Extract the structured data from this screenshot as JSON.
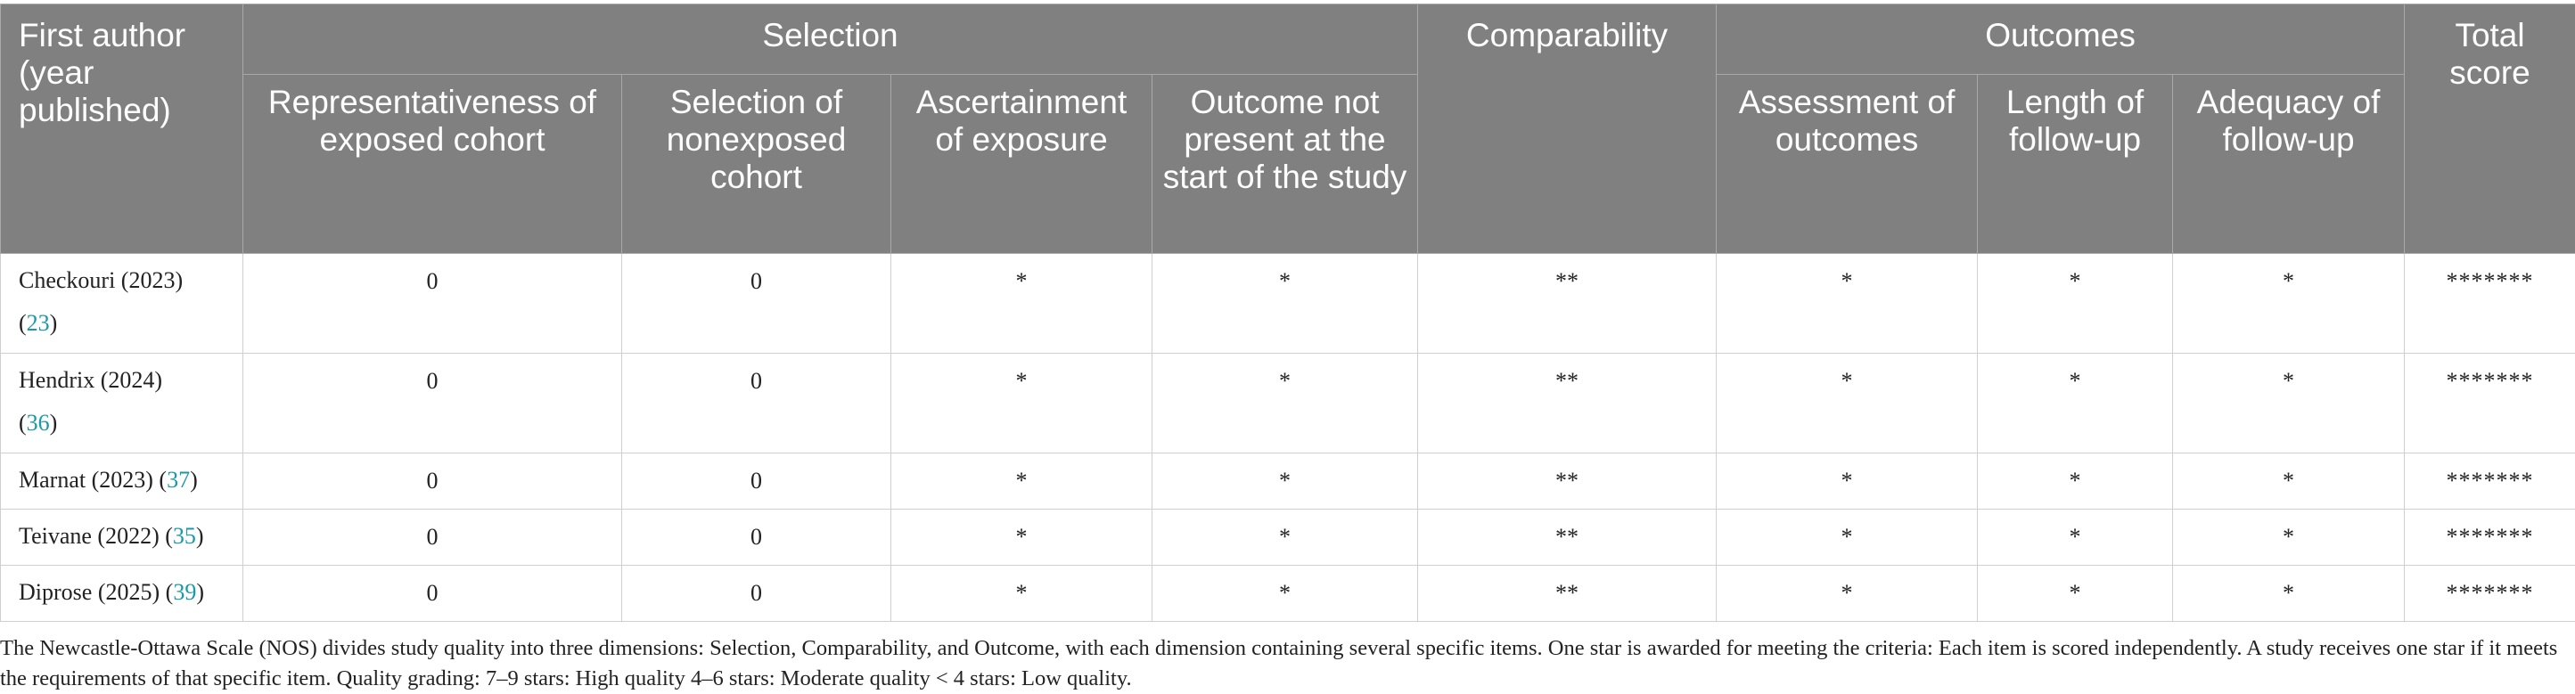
{
  "header": {
    "first_author": "First author (year published)",
    "groups": {
      "selection": "Selection",
      "comparability": "Comparability",
      "outcomes": "Outcomes",
      "total": "Total score"
    },
    "selection_items": [
      "Representativeness of exposed cohort",
      "Selection of nonexposed cohort",
      "Ascertainment of exposure",
      "Outcome not present at the start of the study"
    ],
    "outcome_items": [
      "Assessment of outcomes",
      "Length of follow-up",
      "Adequacy of follow-up"
    ]
  },
  "rows": [
    {
      "author": "Checkouri (2023)",
      "ref": "23",
      "cells": [
        "0",
        "0",
        "*",
        "*",
        "**",
        "*",
        "*",
        "*",
        "*******"
      ]
    },
    {
      "author": "Hendrix (2024)",
      "ref": "36",
      "cells": [
        "0",
        "0",
        "*",
        "*",
        "**",
        "*",
        "*",
        "*",
        "*******"
      ]
    },
    {
      "author": "Marnat (2023)",
      "ref": "37",
      "cells": [
        "0",
        "0",
        "*",
        "*",
        "**",
        "*",
        "*",
        "*",
        "*******"
      ]
    },
    {
      "author": "Teivane (2022)",
      "ref": "35",
      "cells": [
        "0",
        "0",
        "*",
        "*",
        "**",
        "*",
        "*",
        "*",
        "*******"
      ]
    },
    {
      "author": "Diprose (2025)",
      "ref": "39",
      "cells": [
        "0",
        "0",
        "*",
        "*",
        "**",
        "*",
        "*",
        "*",
        "*******"
      ]
    }
  ],
  "footnote": "The Newcastle-Ottawa Scale (NOS) divides study quality into three dimensions: Selection, Comparability, and Outcome, with each dimension containing several specific items. One star is awarded for meeting the criteria: Each item is scored independently. A study receives one star if it meets the requirements of that specific item. Quality grading: 7–9 stars: High quality 4–6 stars: Moderate quality < 4 stars: Low quality.",
  "colors": {
    "header_bg": "#808080",
    "header_text": "#ffffff",
    "ref_link": "#1a9aa6"
  }
}
